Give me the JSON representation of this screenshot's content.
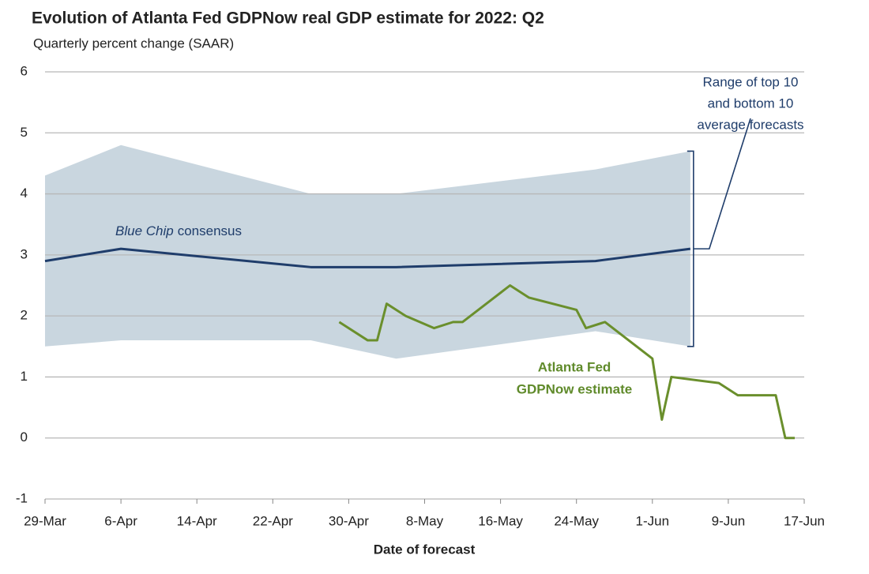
{
  "chart_data": {
    "type": "line",
    "title": "Evolution of Atlanta Fed GDPNow real GDP estimate for 2022: Q2",
    "subtitle": "Quarterly percent change (SAAR)",
    "x_label": "Date of forecast",
    "xlim": [
      0,
      80
    ],
    "xticks": [
      {
        "value": 0,
        "label": "29-Mar"
      },
      {
        "value": 8,
        "label": "6-Apr"
      },
      {
        "value": 16,
        "label": "14-Apr"
      },
      {
        "value": 24,
        "label": "22-Apr"
      },
      {
        "value": 32,
        "label": "30-Apr"
      },
      {
        "value": 40,
        "label": "8-May"
      },
      {
        "value": 48,
        "label": "16-May"
      },
      {
        "value": 56,
        "label": "24-May"
      },
      {
        "value": 64,
        "label": "1-Jun"
      },
      {
        "value": 72,
        "label": "9-Jun"
      },
      {
        "value": 80,
        "label": "17-Jun"
      }
    ],
    "ylim": [
      -1,
      6
    ],
    "yticks": [
      -1,
      0,
      1,
      2,
      3,
      4,
      5,
      6
    ],
    "grid": true,
    "band": {
      "color": "#c9d6df",
      "x": [
        0,
        8,
        28,
        37,
        58,
        68
      ],
      "upper": [
        4.3,
        4.8,
        4.0,
        4.0,
        4.4,
        4.7
      ],
      "lower": [
        1.5,
        1.6,
        1.6,
        1.3,
        1.75,
        1.5
      ]
    },
    "series": [
      {
        "color": "#1f3d6b",
        "x": [
          0,
          8,
          28,
          37,
          58,
          68
        ],
        "values": [
          2.9,
          3.1,
          2.8,
          2.8,
          2.9,
          3.1
        ]
      },
      {
        "color": "#6a8f2c",
        "x": [
          31,
          34,
          35,
          36,
          38,
          41,
          43,
          44,
          49,
          51,
          56,
          57,
          59,
          64,
          65,
          66,
          71,
          73,
          77,
          78,
          79
        ],
        "values": [
          1.9,
          1.6,
          1.6,
          2.2,
          2.0,
          1.8,
          1.9,
          1.9,
          2.5,
          2.3,
          2.1,
          1.8,
          1.9,
          1.3,
          0.3,
          1.0,
          0.9,
          0.7,
          0.7,
          0.0,
          0.0
        ]
      }
    ],
    "annotations": {
      "blue_chip": [
        "Blue Chip",
        "consensus"
      ],
      "range": [
        "Range of top 10",
        "and bottom 10",
        "average forecasts"
      ],
      "gdpnow": [
        "Atlanta Fed",
        "GDPNow estimate"
      ]
    }
  }
}
